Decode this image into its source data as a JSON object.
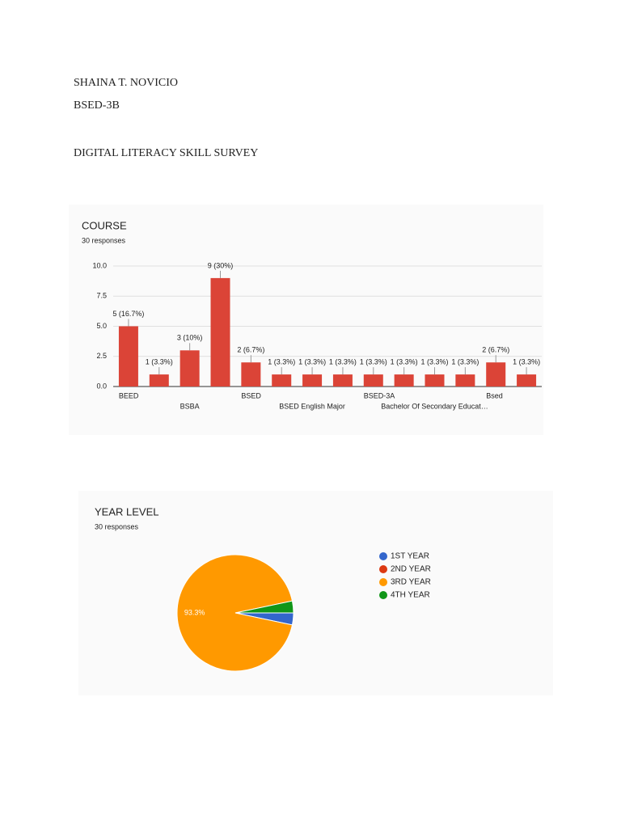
{
  "document": {
    "author": "SHAINA T. NOVICIO",
    "section": "BSED-3B",
    "title": "DIGITAL LITERACY SKILL SURVEY"
  },
  "chart_data": [
    {
      "type": "bar",
      "title": "COURSE",
      "subtitle": "30 responses",
      "categories": [
        "BEED",
        null,
        "BSBA",
        null,
        "BSED",
        null,
        "BSED English Major",
        null,
        "BSED-3A",
        null,
        "Bachelor Of Secondary Educat…",
        null,
        "Bsed",
        null
      ],
      "values": [
        5,
        1,
        3,
        9,
        2,
        1,
        1,
        1,
        1,
        1,
        1,
        1,
        2,
        1
      ],
      "value_labels": [
        "5 (16.7%)",
        "1 (3.3%)",
        "3 (10%)",
        "9 (30%)",
        "2 (6.7%)",
        "1 (3.3%)",
        "1 (3.3%)",
        "1 (3.3%)",
        "1 (3.3%)",
        "1 (3.3%)",
        "1 (3.3%)",
        "1 (3.3%)",
        "2 (6.7%)",
        "1 (3.3%)"
      ],
      "color": "#db4437",
      "ylim": [
        0,
        10
      ],
      "yticks": [
        {
          "value": 0,
          "label": "0.0"
        },
        {
          "value": 2.5,
          "label": "2.5"
        },
        {
          "value": 5,
          "label": "5.0"
        },
        {
          "value": 7.5,
          "label": "7.5"
        },
        {
          "value": 10,
          "label": "10.0"
        }
      ],
      "grid": true
    },
    {
      "type": "pie",
      "title": "YEAR LEVEL",
      "subtitle": "30 responses",
      "categories": [
        "1ST YEAR",
        "2ND YEAR",
        "3RD YEAR",
        "4TH YEAR"
      ],
      "values": [
        3.3,
        0,
        93.3,
        3.3
      ],
      "value_labels": [
        null,
        null,
        "93.3%",
        null
      ],
      "colors": [
        "#3366cc",
        "#dc3912",
        "#ff9900",
        "#109618"
      ],
      "legend": "right"
    }
  ]
}
